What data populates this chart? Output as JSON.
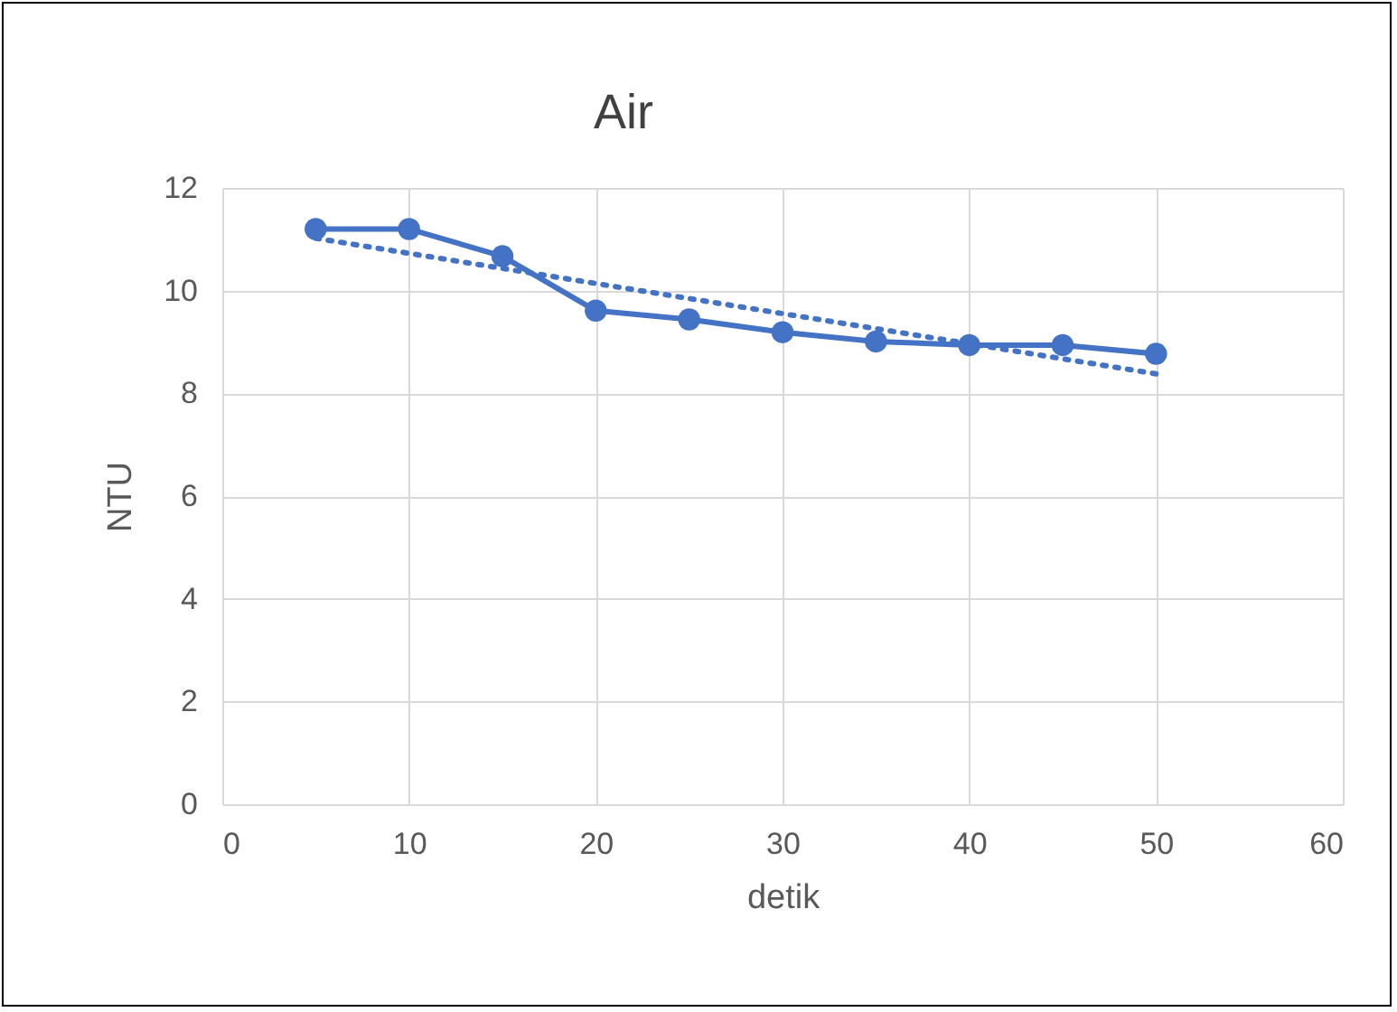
{
  "chart_data": {
    "type": "line",
    "title": "Air",
    "xlabel": "detik",
    "ylabel": "NTU",
    "x": [
      5,
      10,
      15,
      20,
      25,
      30,
      35,
      40,
      45,
      50
    ],
    "series": [
      {
        "color": "#4472c4",
        "marker": "circle",
        "line_style": "solid",
        "values": [
          11.2,
          11.2,
          10.67,
          9.61,
          9.44,
          9.19,
          9.01,
          8.94,
          8.94,
          8.77
        ]
      },
      {
        "type": "line",
        "color": "#4472c4",
        "marker": "none",
        "line_style": "dotted",
        "x": [
          5,
          50
        ],
        "values": [
          11.02,
          8.38
        ]
      }
    ],
    "xlim": [
      0,
      60
    ],
    "xticks": [
      0,
      10,
      20,
      30,
      40,
      50,
      60
    ],
    "ylim": [
      0,
      12
    ],
    "yticks": [
      0,
      2,
      4,
      6,
      8,
      10,
      12
    ],
    "grid": true
  }
}
